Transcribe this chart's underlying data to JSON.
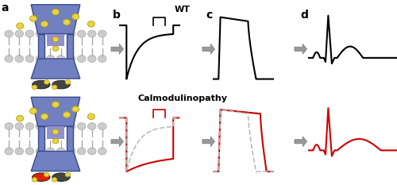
{
  "wt_label": "WT",
  "calmod_label": "Calmodulinopathy",
  "panel_labels": [
    "a",
    "b",
    "c",
    "d"
  ],
  "wt_color": "#000000",
  "mut_color": "#cc0000",
  "dashed_color": "#bbbbbb",
  "arrow_facecolor": "#999999",
  "arrow_edgecolor": "#777777",
  "bg_color": "#ffffff",
  "channel_blue": "#7080c0",
  "channel_dark": "#3a4a8f",
  "channel_mid": "#9090d0",
  "lipid_gray": "#cccccc",
  "lipid_edge": "#aaaaaa",
  "ca_yellow": "#e8d44d",
  "ca_outline": "#c0a800",
  "cam_dark": "#444444",
  "cam_red": "#dd2200"
}
